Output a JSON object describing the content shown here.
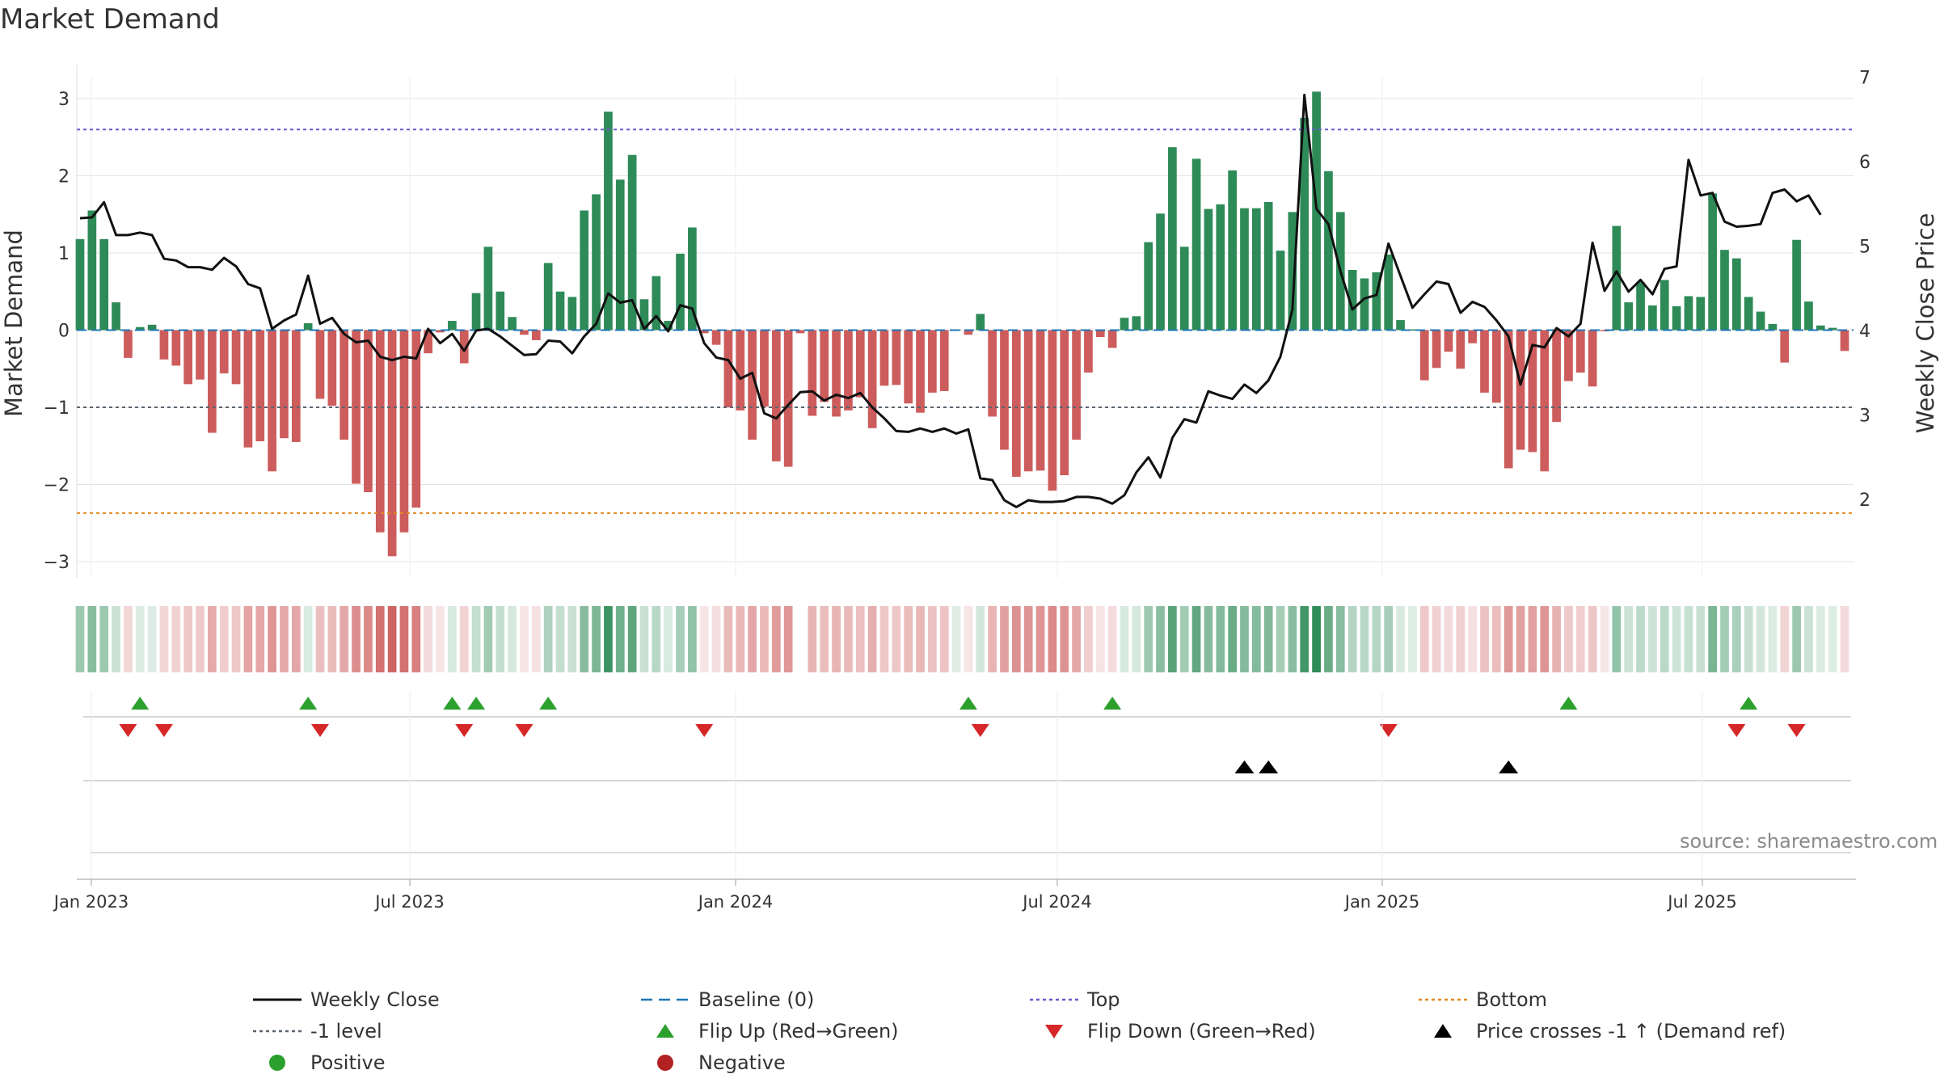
{
  "chart_data": {
    "type": "bar",
    "title": "Market Demand",
    "ylabel": "Market Demand",
    "y2label": "Weekly Close Price",
    "ylim": [
      -3.3,
      3.5
    ],
    "y2lim": [
      1.0,
      7.1
    ],
    "yticks": [
      "3",
      "2",
      "1",
      "0",
      "−1",
      "−2",
      "−3"
    ],
    "y2ticks": [
      "7",
      "6",
      "5",
      "4",
      "3",
      "2"
    ],
    "xticks": [
      "Jan 2023",
      "Jul 2023",
      "Jan 2024",
      "Jul 2024",
      "Jan 2025",
      "Jul 2025"
    ],
    "reference_lines": {
      "top": 2.6,
      "bottom": -2.37,
      "minus_one": -1.0,
      "baseline": 0
    },
    "colors": {
      "positive": "#2e8b57",
      "negative": "#cd5c5c",
      "price": "#111111",
      "top": "#6a5acd",
      "bottom": "#e08a1e",
      "minus_one": "#5a6470",
      "baseline": "#1f77b4",
      "flip_up": "#2ca02c",
      "flip_down": "#d62728",
      "cross": "#000000",
      "dot_positive": "#2ca02c",
      "dot_negative": "#b22222"
    },
    "demand": [
      1.18,
      1.55,
      1.18,
      0.36,
      -0.36,
      0.04,
      0.07,
      -0.38,
      -0.46,
      -0.7,
      -0.64,
      -1.33,
      -0.56,
      -0.7,
      -1.52,
      -1.44,
      -1.83,
      -1.4,
      -1.45,
      0.09,
      -0.89,
      -0.98,
      -1.42,
      -1.99,
      -2.1,
      -2.62,
      -2.93,
      -2.62,
      -2.3,
      -0.3,
      -0.03,
      0.12,
      -0.43,
      0.48,
      1.08,
      0.5,
      0.17,
      -0.06,
      -0.13,
      0.87,
      0.5,
      0.43,
      1.55,
      1.76,
      2.83,
      1.95,
      2.27,
      0.4,
      0.7,
      0.12,
      0.99,
      1.33,
      -0.04,
      -0.19,
      -1.0,
      -1.04,
      -1.42,
      -0.99,
      -1.7,
      -1.77,
      -0.04,
      -1.11,
      -0.93,
      -1.12,
      -1.04,
      -0.87,
      -1.27,
      -0.72,
      -0.71,
      -0.95,
      -1.07,
      -0.81,
      -0.79,
      0.01,
      -0.06,
      0.21,
      -1.12,
      -1.55,
      -1.9,
      -1.83,
      -1.82,
      -2.08,
      -1.88,
      -1.42,
      -0.55,
      -0.09,
      -0.23,
      0.16,
      0.18,
      1.14,
      1.51,
      2.37,
      1.08,
      2.22,
      1.57,
      1.63,
      2.07,
      1.58,
      1.58,
      1.66,
      1.03,
      1.53,
      2.75,
      3.09,
      2.06,
      1.53,
      0.78,
      0.67,
      0.75,
      0.98,
      0.13,
      0.01,
      -0.65,
      -0.49,
      -0.28,
      -0.5,
      -0.17,
      -0.81,
      -0.94,
      -1.79,
      -1.55,
      -1.58,
      -1.83,
      -1.19,
      -0.66,
      -0.55,
      -0.73,
      -0.01,
      1.35,
      0.36,
      0.62,
      0.32,
      0.65,
      0.31,
      0.44,
      0.43,
      1.77,
      1.04,
      0.93,
      0.43,
      0.24,
      0.08,
      -0.42,
      1.17,
      0.37,
      0.06,
      0.03,
      -0.27
    ],
    "price": [
      5.33,
      5.34,
      5.52,
      5.13,
      5.13,
      5.16,
      5.13,
      4.85,
      4.83,
      4.75,
      4.75,
      4.72,
      4.86,
      4.76,
      4.55,
      4.5,
      4.02,
      4.12,
      4.19,
      4.65,
      4.08,
      4.15,
      3.96,
      3.86,
      3.88,
      3.69,
      3.65,
      3.69,
      3.67,
      4.02,
      3.85,
      3.96,
      3.76,
      4.0,
      4.02,
      3.93,
      3.82,
      3.71,
      3.72,
      3.88,
      3.87,
      3.73,
      3.93,
      4.08,
      4.44,
      4.33,
      4.36,
      4.02,
      4.17,
      3.99,
      4.3,
      4.26,
      3.85,
      3.68,
      3.65,
      3.43,
      3.5,
      3.02,
      2.96,
      3.12,
      3.27,
      3.28,
      3.17,
      3.24,
      3.2,
      3.26,
      3.09,
      2.96,
      2.81,
      2.8,
      2.84,
      2.8,
      2.84,
      2.78,
      2.83,
      2.25,
      2.23,
      1.99,
      1.91,
      1.99,
      1.97,
      1.97,
      1.98,
      2.03,
      2.03,
      2.01,
      1.95,
      2.05,
      2.32,
      2.5,
      2.26,
      2.73,
      2.95,
      2.91,
      3.28,
      3.23,
      3.19,
      3.36,
      3.26,
      3.41,
      3.69,
      4.25,
      6.79,
      5.44,
      5.26,
      4.7,
      4.25,
      4.38,
      4.42,
      5.03,
      4.65,
      4.27,
      4.43,
      4.58,
      4.55,
      4.21,
      4.34,
      4.28,
      4.12,
      3.93,
      3.36,
      3.83,
      3.8,
      4.03,
      3.93,
      4.08,
      5.04,
      4.47,
      4.7,
      4.46,
      4.6,
      4.43,
      4.73,
      4.76,
      6.02,
      5.6,
      5.63,
      5.29,
      5.23,
      5.24,
      5.26,
      5.63,
      5.67,
      5.53,
      5.6,
      5.37
    ],
    "flip_up_weeks": [
      5,
      19,
      31,
      33,
      39,
      74,
      86,
      124,
      139
    ],
    "flip_down_weeks": [
      4,
      7,
      20,
      32,
      37,
      52,
      75,
      109,
      138,
      143
    ],
    "price_cross_weeks": [
      97,
      99,
      119
    ],
    "legend": [
      {
        "label": "Weekly Close",
        "symbol": "line"
      },
      {
        "label": "Baseline (0)",
        "symbol": "dash-baseline"
      },
      {
        "label": "Top",
        "symbol": "dot-top"
      },
      {
        "label": "Bottom",
        "symbol": "dot-bottom"
      },
      {
        "label": "-1 level",
        "symbol": "dot-minus-one"
      },
      {
        "label": "Flip Up (Red→Green)",
        "symbol": "tri-up-green"
      },
      {
        "label": "Flip Down (Green→Red)",
        "symbol": "tri-down-red"
      },
      {
        "label": "Price crosses -1 ↑ (Demand ref)",
        "symbol": "tri-up-black"
      },
      {
        "label": "Positive",
        "symbol": "dot-green"
      },
      {
        "label": "Negative",
        "symbol": "dot-red"
      }
    ],
    "source": "source: sharemaestro.com"
  }
}
